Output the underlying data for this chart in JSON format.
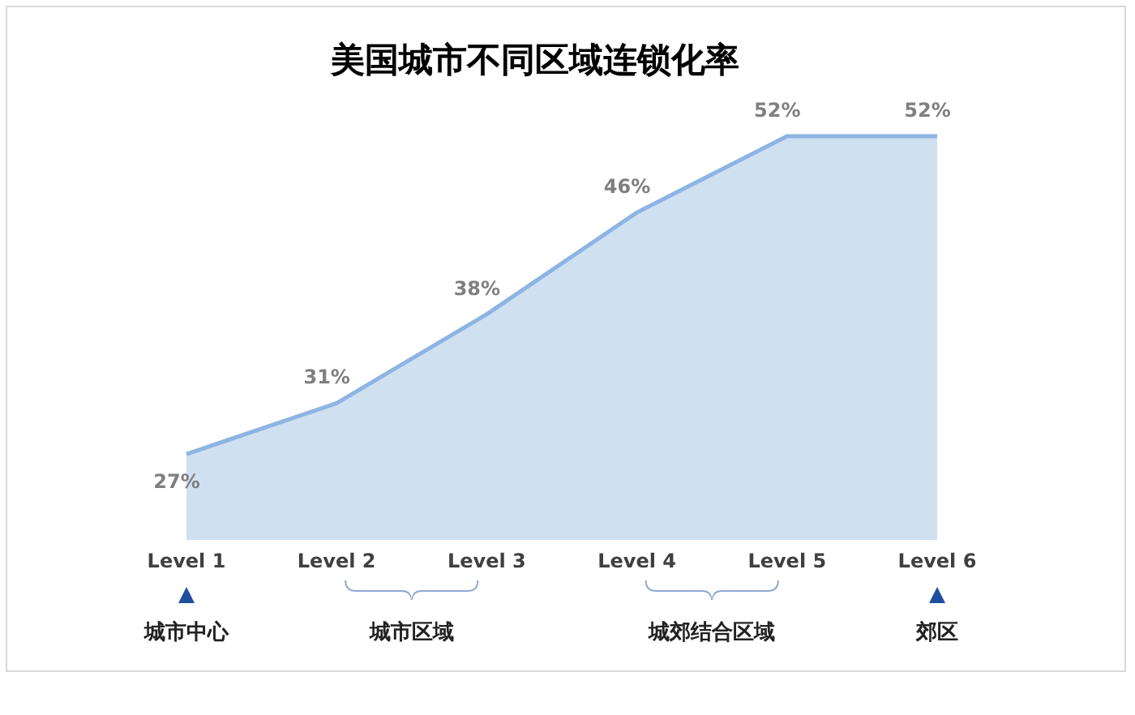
{
  "chart_data": {
    "type": "area",
    "title": "美国城市不同区域连锁化率",
    "categories": [
      "Level 1",
      "Level 2",
      "Level 3",
      "Level 4",
      "Level 5",
      "Level 6"
    ],
    "series": [
      {
        "color": "#8db4e2",
        "values": [
          27,
          31,
          38,
          46,
          52,
          52
        ],
        "value_labels": [
          "27%",
          "31%",
          "38%",
          "46%",
          "52%",
          "52%"
        ]
      }
    ],
    "annotations": [
      "城市中心",
      "城市区域",
      "城郊结合区域",
      "郊区"
    ]
  }
}
